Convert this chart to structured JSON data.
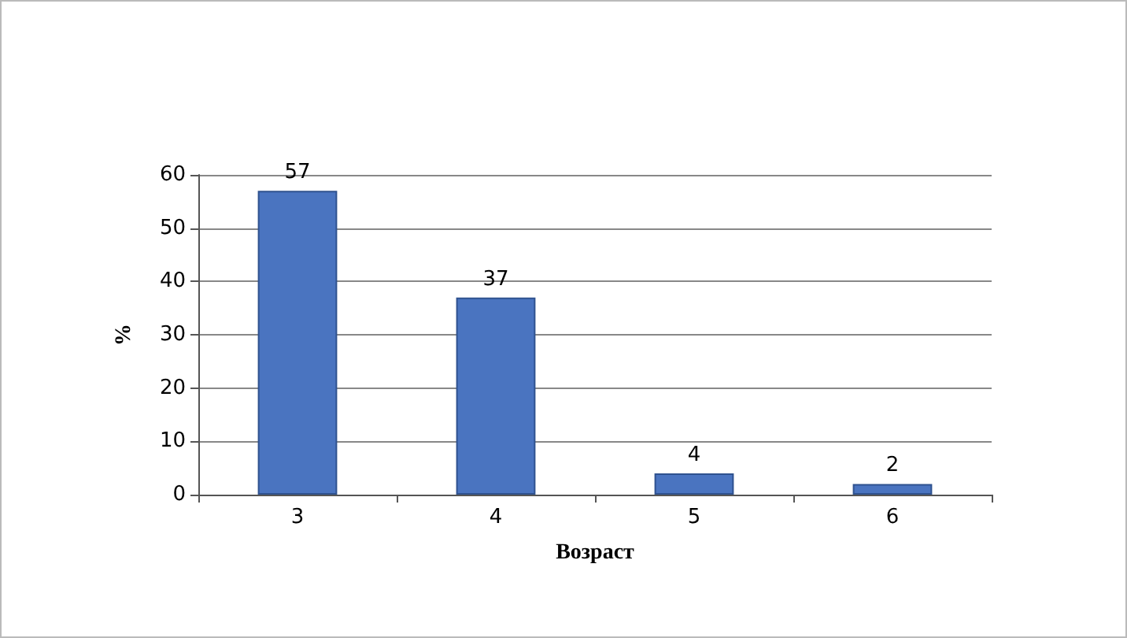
{
  "chart_data": {
    "type": "bar",
    "xlabel": "Возраст",
    "ylabel": "%",
    "categories": [
      "3",
      "4",
      "5",
      "6"
    ],
    "values": [
      57,
      37,
      4,
      2
    ],
    "color": "#4a74c0",
    "ylim": [
      0,
      60
    ],
    "yticks": [
      0,
      10,
      20,
      30,
      40,
      50,
      60
    ],
    "grid": "y",
    "data_labels": true
  }
}
